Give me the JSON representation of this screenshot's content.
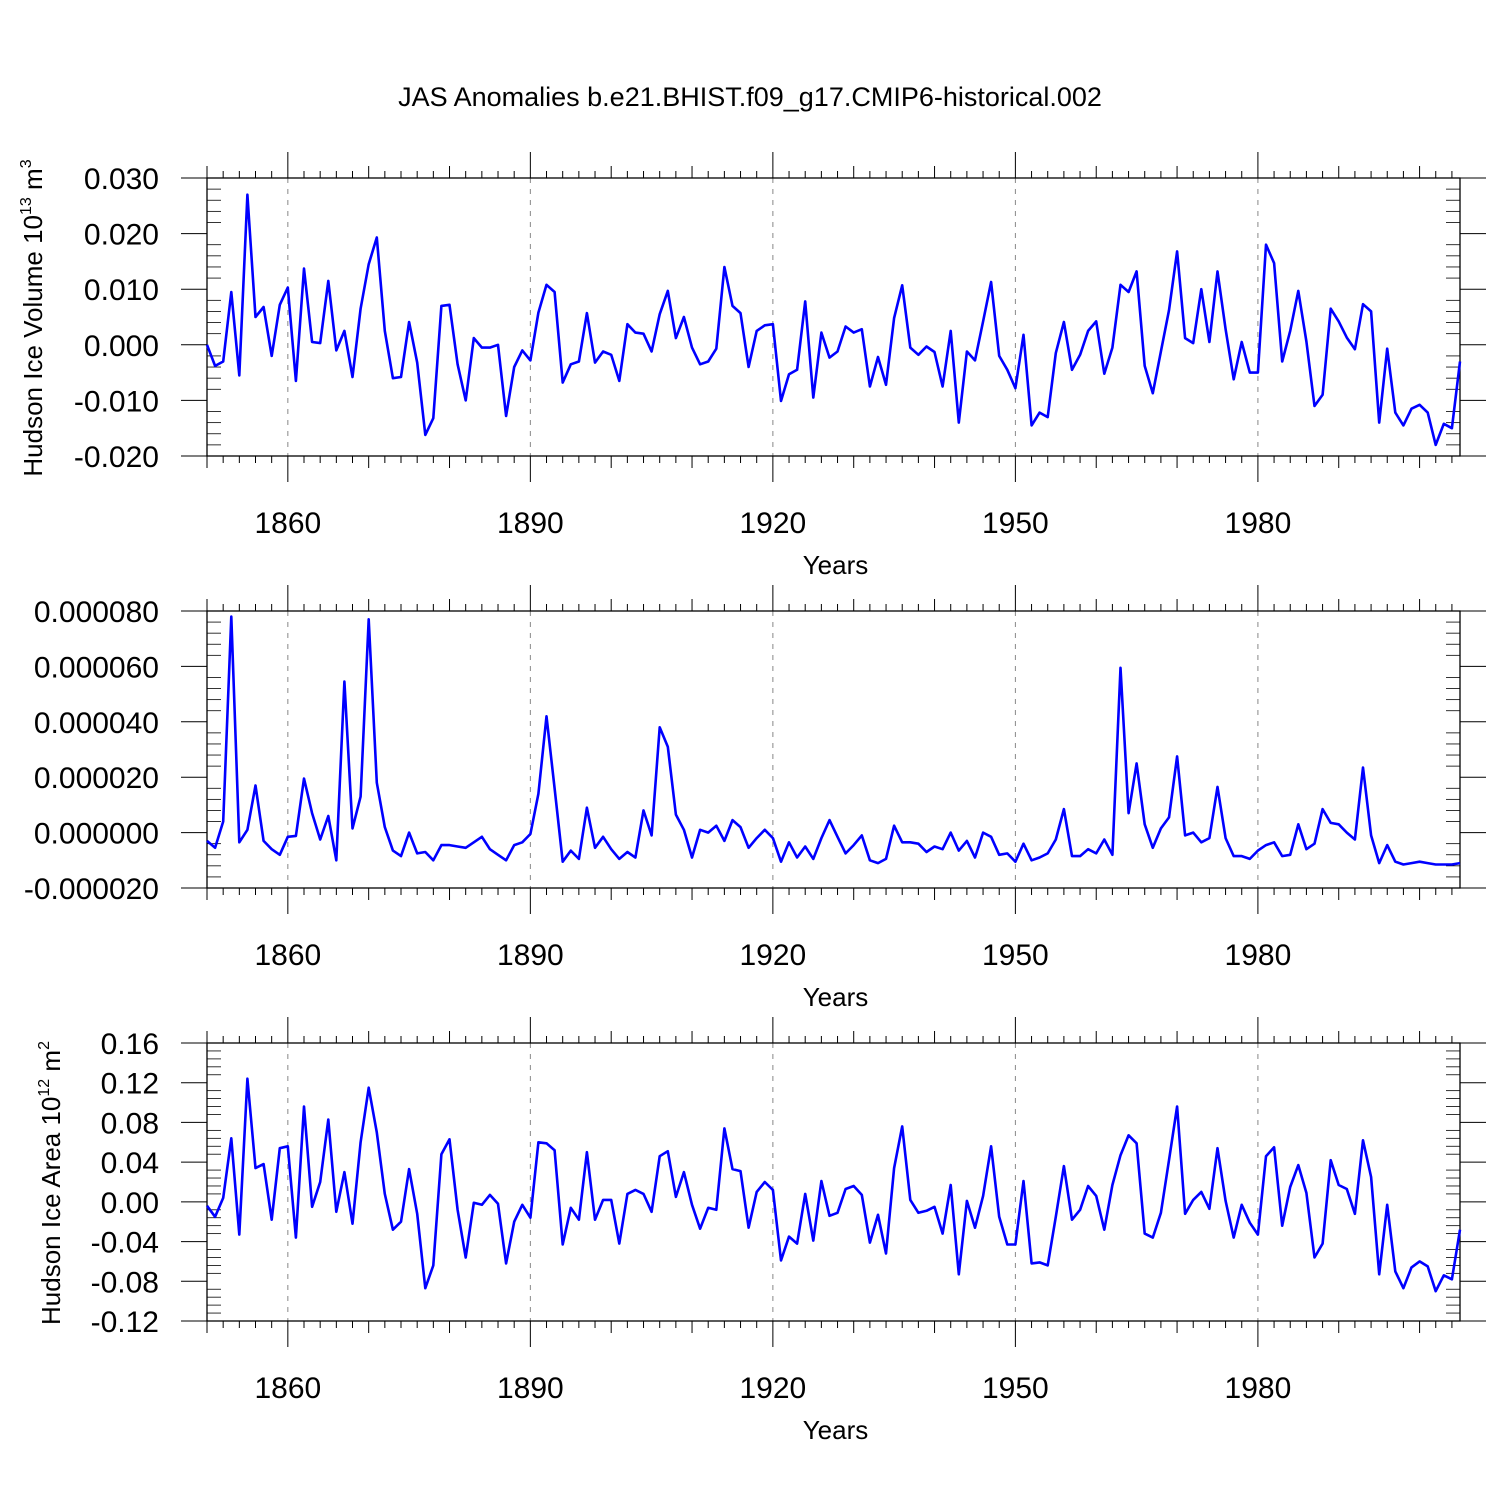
{
  "title": "JAS Anomalies b.e21.BHIST.f09_g17.CMIP6-historical.002",
  "chart_data": [
    {
      "type": "line",
      "ylabel": {
        "base": "Hudson Ice Volume 10",
        "exp": "13",
        "unit": " m",
        "unit_exp": "3"
      },
      "xlabel": "Years",
      "xlim": [
        1850,
        2005
      ],
      "ylim": [
        -0.02,
        0.03
      ],
      "yticks": [
        -0.02,
        -0.01,
        0.0,
        0.01,
        0.02,
        0.03
      ],
      "ytick_labels": [
        "-0.020",
        "-0.010",
        "0.000",
        "0.010",
        "0.020",
        "0.030"
      ],
      "yminor_step": 0.002,
      "xticks": [
        1860,
        1890,
        1920,
        1950,
        1980
      ],
      "xtick_labels": [
        "1860",
        "1890",
        "1920",
        "1950",
        "1980"
      ],
      "x_start": 1850,
      "line_color": "#0000ff",
      "values": [
        0.0,
        -0.0038,
        -0.003,
        0.0095,
        -0.0055,
        0.027,
        0.005,
        0.0068,
        -0.002,
        0.0072,
        0.0103,
        -0.0065,
        0.0137,
        0.0005,
        0.0003,
        0.0115,
        -0.001,
        0.0025,
        -0.0058,
        0.0065,
        0.0145,
        0.0193,
        0.0025,
        -0.006,
        -0.0058,
        0.0041,
        -0.0032,
        -0.0162,
        -0.0132,
        0.007,
        0.0072,
        -0.0035,
        -0.01,
        0.0012,
        -0.0005,
        -0.0005,
        0.0,
        -0.0128,
        -0.004,
        -0.001,
        -0.0028,
        0.0058,
        0.0108,
        0.0095,
        -0.0068,
        -0.0035,
        -0.003,
        0.0057,
        -0.0032,
        -0.0012,
        -0.0018,
        -0.0065,
        0.0037,
        0.0022,
        0.002,
        -0.0012,
        0.0055,
        0.0097,
        0.0012,
        0.005,
        -0.0005,
        -0.0035,
        -0.003,
        -0.0007,
        0.014,
        0.007,
        0.0057,
        -0.004,
        0.0025,
        0.0035,
        0.0037,
        -0.0101,
        -0.0053,
        -0.0045,
        0.0078,
        -0.0095,
        0.0022,
        -0.0023,
        -0.0012,
        0.0033,
        0.0022,
        0.0028,
        -0.0075,
        -0.0022,
        -0.0072,
        0.0048,
        0.0107,
        -0.0005,
        -0.0018,
        -0.0003,
        -0.0013,
        -0.0075,
        0.0025,
        -0.014,
        -0.0012,
        -0.0028,
        0.0042,
        0.0113,
        -0.002,
        -0.0045,
        -0.0078,
        0.0018,
        -0.0145,
        -0.0122,
        -0.013,
        -0.0015,
        0.0041,
        -0.0045,
        -0.0018,
        0.0025,
        0.0042,
        -0.0052,
        -0.0005,
        0.0108,
        0.0095,
        0.0132,
        -0.0038,
        -0.0087,
        -0.0012,
        0.0062,
        0.0168,
        0.0012,
        0.0003,
        0.01,
        0.0005,
        0.0132,
        0.0028,
        -0.0062,
        0.0005,
        -0.005,
        -0.005,
        0.018,
        0.0147,
        -0.003,
        0.0025,
        0.0097,
        0.0006,
        -0.011,
        -0.009,
        0.0065,
        0.0042,
        0.0013,
        -0.0008,
        0.0073,
        0.006,
        -0.014,
        -0.0007,
        -0.0122,
        -0.0145,
        -0.0115,
        -0.0108,
        -0.0122,
        -0.018,
        -0.0142,
        -0.015,
        -0.003
      ]
    },
    {
      "type": "line",
      "ylabel": null,
      "xlabel": "Years",
      "xlim": [
        1850,
        2005
      ],
      "ylim": [
        -2e-05,
        8e-05
      ],
      "yticks": [
        -2e-05,
        0.0,
        2e-05,
        4e-05,
        6e-05,
        8e-05
      ],
      "ytick_labels": [
        "-0.000020",
        "0.000000",
        "0.000020",
        "0.000040",
        "0.000060",
        "0.000080"
      ],
      "yminor_step": 4e-06,
      "xticks": [
        1860,
        1890,
        1920,
        1950,
        1980
      ],
      "xtick_labels": [
        "1860",
        "1890",
        "1920",
        "1950",
        "1980"
      ],
      "x_start": 1850,
      "line_color": "#0000ff",
      "values_scale": 1e-06,
      "values": [
        -3,
        -5.5,
        4,
        78,
        -3.5,
        1,
        17,
        -3,
        -6,
        -8,
        -1.5,
        -1.2,
        19.5,
        7,
        -2.5,
        6,
        -10,
        54.5,
        1.5,
        13,
        77,
        18,
        2,
        -6.5,
        -8.5,
        0,
        -7.5,
        -7,
        -10,
        -4.5,
        -4.5,
        -5,
        -5.5,
        -3.5,
        -1.5,
        -6,
        -8,
        -10,
        -4.5,
        -3.5,
        -0.5,
        14,
        42,
        16,
        -10.5,
        -6.5,
        -9.5,
        9,
        -5.5,
        -1.5,
        -6,
        -9.5,
        -7,
        -9,
        8,
        -1,
        38,
        31,
        6.5,
        1,
        -9,
        1,
        0,
        2.5,
        -3,
        4.5,
        2,
        -5.5,
        -2,
        1,
        -2,
        -10.5,
        -3.5,
        -9,
        -5,
        -9.5,
        -2,
        4.5,
        -1.5,
        -7.5,
        -4.5,
        -1,
        -10,
        -11,
        -9.5,
        2.5,
        -3.5,
        -3.5,
        -4,
        -7,
        -5,
        -6,
        0,
        -6.5,
        -3,
        -9,
        0,
        -1.5,
        -8,
        -7.5,
        -10.5,
        -4,
        -10,
        -9,
        -7.5,
        -2.5,
        8.5,
        -8.5,
        -8.5,
        -6,
        -7.5,
        -2.5,
        -8,
        59.5,
        7,
        25,
        3,
        -5.5,
        1.5,
        5.5,
        27.5,
        -1,
        0,
        -3.5,
        -2,
        16.5,
        -2,
        -8.5,
        -8.5,
        -9.5,
        -6.5,
        -4.5,
        -3.5,
        -8.5,
        -8,
        3,
        -6,
        -4,
        8.5,
        3.5,
        3,
        0,
        -2.5,
        23.5,
        -1,
        -11,
        -4.5,
        -10.5,
        -11.5,
        -11,
        -10.5,
        -11,
        -11.5,
        -11.5,
        -11.5,
        -11
      ]
    },
    {
      "type": "line",
      "ylabel": {
        "base": "Hudson Ice Area 10",
        "exp": "12",
        "unit": " m",
        "unit_exp": "2"
      },
      "xlabel": "Years",
      "xlim": [
        1850,
        2005
      ],
      "ylim": [
        -0.12,
        0.16
      ],
      "yticks": [
        -0.12,
        -0.08,
        -0.04,
        0.0,
        0.04,
        0.08,
        0.12,
        0.16
      ],
      "ytick_labels": [
        "-0.12",
        "-0.08",
        "-0.04",
        "0.00",
        "0.04",
        "0.08",
        "0.12",
        "0.16"
      ],
      "yminor_step": 0.008,
      "xticks": [
        1860,
        1890,
        1920,
        1950,
        1980
      ],
      "xtick_labels": [
        "1860",
        "1890",
        "1920",
        "1950",
        "1980"
      ],
      "x_start": 1850,
      "line_color": "#0000ff",
      "values": [
        -0.004,
        -0.015,
        0.004,
        0.064,
        -0.033,
        0.124,
        0.034,
        0.038,
        -0.018,
        0.054,
        0.056,
        -0.036,
        0.096,
        -0.005,
        0.02,
        0.083,
        -0.01,
        0.03,
        -0.022,
        0.06,
        0.115,
        0.07,
        0.008,
        -0.028,
        -0.02,
        0.033,
        -0.012,
        -0.087,
        -0.064,
        0.048,
        0.063,
        -0.008,
        -0.056,
        -0.001,
        -0.003,
        0.007,
        -0.002,
        -0.062,
        -0.02,
        -0.003,
        -0.016,
        0.06,
        0.059,
        0.052,
        -0.043,
        -0.006,
        -0.018,
        0.05,
        -0.018,
        0.002,
        0.002,
        -0.042,
        0.008,
        0.012,
        0.008,
        -0.01,
        0.046,
        0.051,
        0.005,
        0.03,
        -0.003,
        -0.027,
        -0.006,
        -0.008,
        0.074,
        0.033,
        0.031,
        -0.026,
        0.01,
        0.02,
        0.012,
        -0.059,
        -0.035,
        -0.042,
        0.008,
        -0.039,
        0.021,
        -0.014,
        -0.011,
        0.013,
        0.016,
        0.007,
        -0.041,
        -0.013,
        -0.052,
        0.034,
        0.076,
        0.002,
        -0.011,
        -0.009,
        -0.005,
        -0.032,
        0.017,
        -0.073,
        0.001,
        -0.026,
        0.006,
        0.056,
        -0.015,
        -0.043,
        -0.043,
        0.021,
        -0.062,
        -0.061,
        -0.064,
        -0.015,
        0.036,
        -0.018,
        -0.008,
        0.016,
        0.006,
        -0.028,
        0.017,
        0.047,
        0.067,
        0.059,
        -0.032,
        -0.036,
        -0.011,
        0.042,
        0.096,
        -0.012,
        0.002,
        0.01,
        -0.007,
        0.054,
        0.001,
        -0.036,
        -0.003,
        -0.021,
        -0.033,
        0.046,
        0.055,
        -0.024,
        0.015,
        0.037,
        0.009,
        -0.056,
        -0.042,
        0.042,
        0.017,
        0.013,
        -0.012,
        0.062,
        0.025,
        -0.073,
        -0.003,
        -0.07,
        -0.087,
        -0.066,
        -0.06,
        -0.065,
        -0.09,
        -0.074,
        -0.078,
        -0.028
      ]
    }
  ]
}
